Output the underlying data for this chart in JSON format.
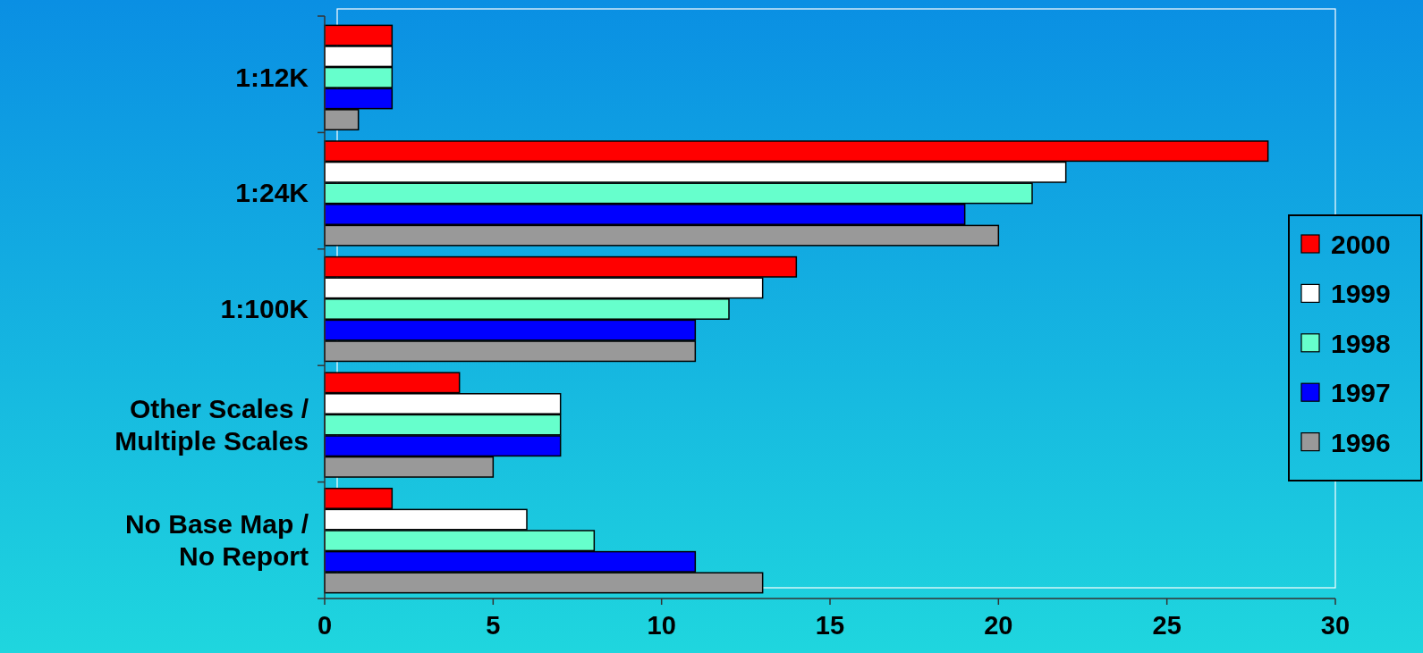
{
  "chart_data": {
    "type": "bar",
    "orientation": "horizontal",
    "categories": [
      "1:12K",
      "1:24K",
      "1:100K",
      "Other Scales /\nMultiple Scales",
      "No Base Map /\nNo Report"
    ],
    "series": [
      {
        "name": "2000",
        "color": "#ff0000",
        "values": [
          2,
          28,
          14,
          4,
          2
        ]
      },
      {
        "name": "1999",
        "color": "#ffffff",
        "values": [
          2,
          22,
          13,
          7,
          6
        ]
      },
      {
        "name": "1998",
        "color": "#66ffcc",
        "values": [
          2,
          21,
          12,
          7,
          8
        ]
      },
      {
        "name": "1997",
        "color": "#0000ff",
        "values": [
          2,
          19,
          11,
          7,
          11
        ]
      },
      {
        "name": "1996",
        "color": "#999999",
        "values": [
          1,
          20,
          11,
          5,
          13
        ]
      }
    ],
    "xlim": [
      0,
      30
    ],
    "xticks": [
      0,
      5,
      10,
      15,
      20,
      25,
      30
    ],
    "grid": false,
    "legend": "right"
  }
}
